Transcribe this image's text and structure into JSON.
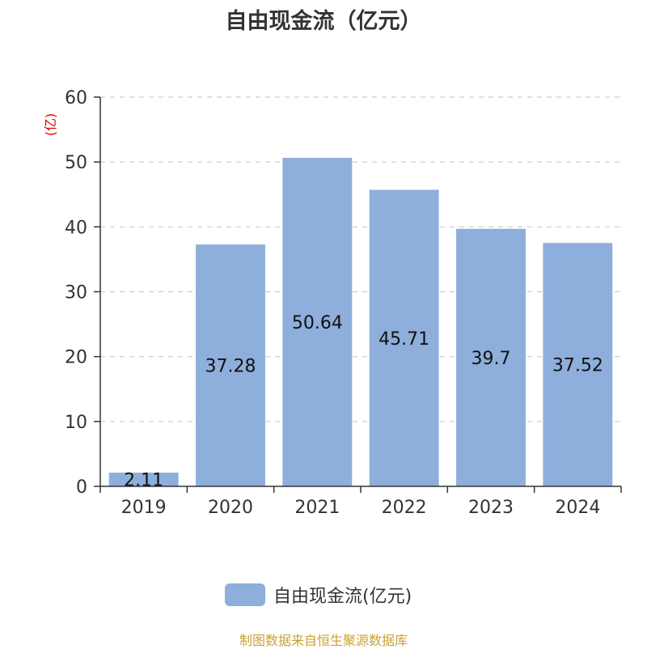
{
  "chart_data": {
    "type": "bar",
    "title": "自由现金流（亿元）",
    "unit_label": "(亿)",
    "categories": [
      "2019",
      "2020",
      "2021",
      "2022",
      "2023",
      "2024"
    ],
    "series": [
      {
        "name": "自由现金流(亿元)",
        "values": [
          2.11,
          37.28,
          50.64,
          45.71,
          39.7,
          37.52
        ]
      }
    ],
    "data_labels": [
      "2.11",
      "37.28",
      "50.64",
      "45.71",
      "39.7",
      "37.52"
    ],
    "ylim": [
      0,
      60
    ],
    "yticks": [
      0,
      10,
      20,
      30,
      40,
      50,
      60
    ],
    "grid": true,
    "legend_position": "bottom",
    "colors": {
      "bar": "#8eaedb",
      "unit_label": "#dd0000",
      "grid": "#cccccc",
      "axis": "#333333",
      "source": "#c8a232"
    }
  },
  "source_note": "制图数据来自恒生聚源数据库"
}
